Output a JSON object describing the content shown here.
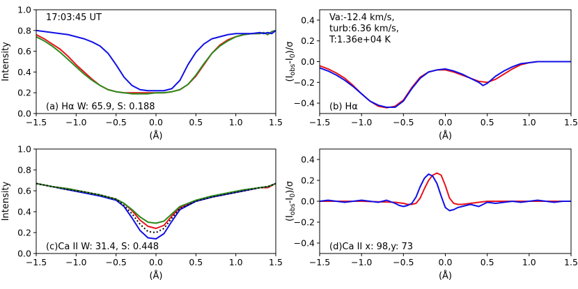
{
  "figure": {
    "colors": {
      "red": "#e8111a",
      "blue": "#0f0fe6",
      "green": "#2c8a1c",
      "black": "#000000"
    }
  },
  "chart_data": [
    {
      "id": "a",
      "type": "line",
      "title": "",
      "xlabel": "(Å)",
      "ylabel": "Intensity",
      "xlim": [
        -1.5,
        1.5
      ],
      "ylim": [
        0.0,
        1.0
      ],
      "xticks": [
        -1.5,
        -1.0,
        -0.5,
        0.0,
        0.5,
        1.0,
        1.5
      ],
      "xtick_labels": [
        "−1.5",
        "−1.0",
        "−0.5",
        "0.0",
        "0.5",
        "1.0",
        "1.5"
      ],
      "yticks": [
        0.0,
        0.2,
        0.4,
        0.6,
        0.8,
        1.0
      ],
      "ytick_labels": [
        "0.0",
        "0.2",
        "0.4",
        "0.6",
        "0.8",
        "1.0"
      ],
      "annotations": [
        {
          "text": "17:03:45 UT",
          "anchor": "top-left"
        },
        {
          "text": "(a) Hα W: 65.9, S: 0.188",
          "anchor": "bottom-left"
        }
      ],
      "series": [
        {
          "name": "red",
          "color": "#e8111a",
          "dash": "",
          "x": [
            -1.5,
            -1.4,
            -1.3,
            -1.2,
            -1.1,
            -1.0,
            -0.9,
            -0.8,
            -0.7,
            -0.6,
            -0.5,
            -0.4,
            -0.3,
            -0.2,
            -0.1,
            0.0,
            0.1,
            0.2,
            0.3,
            0.4,
            0.5,
            0.6,
            0.7,
            0.8,
            0.9,
            1.0,
            1.1,
            1.2,
            1.3,
            1.35,
            1.4,
            1.45,
            1.5
          ],
          "y": [
            0.76,
            0.72,
            0.67,
            0.62,
            0.55,
            0.47,
            0.4,
            0.33,
            0.27,
            0.23,
            0.21,
            0.2,
            0.2,
            0.2,
            0.2,
            0.2,
            0.2,
            0.21,
            0.23,
            0.28,
            0.36,
            0.47,
            0.58,
            0.66,
            0.71,
            0.74,
            0.76,
            0.77,
            0.77,
            0.78,
            0.76,
            0.79,
            0.8
          ]
        },
        {
          "name": "green",
          "color": "#2c8a1c",
          "dash": "",
          "x": [
            -1.5,
            -1.4,
            -1.3,
            -1.2,
            -1.1,
            -1.0,
            -0.9,
            -0.8,
            -0.7,
            -0.6,
            -0.5,
            -0.4,
            -0.3,
            -0.2,
            -0.1,
            0.0,
            0.1,
            0.2,
            0.3,
            0.4,
            0.5,
            0.6,
            0.7,
            0.8,
            0.9,
            1.0,
            1.1,
            1.2,
            1.3,
            1.35,
            1.4,
            1.45,
            1.5
          ],
          "y": [
            0.74,
            0.7,
            0.65,
            0.59,
            0.52,
            0.45,
            0.38,
            0.32,
            0.27,
            0.23,
            0.21,
            0.2,
            0.19,
            0.19,
            0.19,
            0.2,
            0.2,
            0.21,
            0.23,
            0.28,
            0.37,
            0.48,
            0.58,
            0.65,
            0.7,
            0.74,
            0.76,
            0.77,
            0.77,
            0.78,
            0.76,
            0.79,
            0.8
          ]
        },
        {
          "name": "blue",
          "color": "#0f0fe6",
          "dash": "",
          "x": [
            -1.5,
            -1.4,
            -1.3,
            -1.2,
            -1.1,
            -1.0,
            -0.9,
            -0.8,
            -0.7,
            -0.6,
            -0.5,
            -0.4,
            -0.3,
            -0.2,
            -0.1,
            0.0,
            0.1,
            0.2,
            0.3,
            0.4,
            0.5,
            0.6,
            0.7,
            0.8,
            0.9,
            1.0,
            1.1,
            1.2,
            1.3,
            1.35,
            1.4,
            1.45,
            1.5
          ],
          "y": [
            0.8,
            0.79,
            0.78,
            0.77,
            0.76,
            0.74,
            0.72,
            0.69,
            0.65,
            0.58,
            0.47,
            0.35,
            0.27,
            0.23,
            0.22,
            0.22,
            0.22,
            0.24,
            0.32,
            0.47,
            0.59,
            0.67,
            0.72,
            0.74,
            0.76,
            0.77,
            0.77,
            0.77,
            0.78,
            0.77,
            0.78,
            0.77,
            0.8
          ]
        }
      ]
    },
    {
      "id": "b",
      "type": "line",
      "title": "",
      "xlabel": "(Å)",
      "ylabel_main": "(I",
      "ylabel_sub1": "obs",
      "ylabel_mid": "-I",
      "ylabel_sub2": "0",
      "ylabel_end": ")/σ",
      "xlim": [
        -1.5,
        1.5
      ],
      "ylim": [
        -0.5,
        0.5
      ],
      "xticks": [
        -1.5,
        -1.0,
        -0.5,
        0.0,
        0.5,
        1.0,
        1.5
      ],
      "xtick_labels": [
        "−1.5",
        "−1.0",
        "−0.5",
        "0.0",
        "0.5",
        "1.0",
        "1.5"
      ],
      "yticks": [
        -0.4,
        -0.2,
        0.0,
        0.2,
        0.4
      ],
      "ytick_labels": [
        "−0.4",
        "−0.2",
        "0.0",
        "0.2",
        "0.4"
      ],
      "annotations": [
        {
          "text": "Va:-12.4 km/s,",
          "anchor": "top-left"
        },
        {
          "text": "turb:6.36 km/s,",
          "anchor": "top-left"
        },
        {
          "text": "T:1.36e+04 K",
          "anchor": "top-left"
        },
        {
          "text": "(b) Hα",
          "anchor": "bottom-left"
        }
      ],
      "series": [
        {
          "name": "red",
          "color": "#e8111a",
          "dash": "",
          "x": [
            -1.5,
            -1.4,
            -1.3,
            -1.2,
            -1.1,
            -1.0,
            -0.9,
            -0.8,
            -0.7,
            -0.6,
            -0.5,
            -0.4,
            -0.3,
            -0.2,
            -0.1,
            0.0,
            0.1,
            0.2,
            0.3,
            0.4,
            0.5,
            0.6,
            0.7,
            0.8,
            0.9,
            1.0,
            1.1,
            1.2,
            1.3,
            1.4,
            1.5
          ],
          "y": [
            -0.04,
            -0.07,
            -0.11,
            -0.16,
            -0.23,
            -0.31,
            -0.38,
            -0.43,
            -0.445,
            -0.43,
            -0.37,
            -0.25,
            -0.15,
            -0.1,
            -0.08,
            -0.08,
            -0.1,
            -0.13,
            -0.16,
            -0.19,
            -0.2,
            -0.17,
            -0.12,
            -0.07,
            -0.03,
            -0.01,
            0.0,
            0.0,
            0.0,
            0.0,
            0.0
          ]
        },
        {
          "name": "blue",
          "color": "#0f0fe6",
          "dash": "",
          "x": [
            -1.5,
            -1.4,
            -1.3,
            -1.2,
            -1.1,
            -1.0,
            -0.9,
            -0.8,
            -0.7,
            -0.6,
            -0.5,
            -0.4,
            -0.3,
            -0.2,
            -0.1,
            0.0,
            0.1,
            0.2,
            0.3,
            0.4,
            0.45,
            0.5,
            0.6,
            0.7,
            0.8,
            0.9,
            1.0,
            1.1,
            1.2,
            1.3,
            1.4,
            1.5
          ],
          "y": [
            -0.06,
            -0.09,
            -0.13,
            -0.18,
            -0.24,
            -0.31,
            -0.38,
            -0.42,
            -0.44,
            -0.44,
            -0.38,
            -0.26,
            -0.16,
            -0.1,
            -0.08,
            -0.07,
            -0.09,
            -0.12,
            -0.16,
            -0.2,
            -0.23,
            -0.21,
            -0.14,
            -0.09,
            -0.05,
            -0.02,
            -0.01,
            0.0,
            0.0,
            0.0,
            0.0,
            0.0
          ]
        }
      ]
    },
    {
      "id": "c",
      "type": "line",
      "title": "",
      "xlabel": "(Å)",
      "ylabel": "Intensity",
      "xlim": [
        -1.5,
        1.5
      ],
      "ylim": [
        0.0,
        1.0
      ],
      "xticks": [
        -1.5,
        -1.0,
        -0.5,
        0.0,
        0.5,
        1.0,
        1.5
      ],
      "xtick_labels": [
        "−1.5",
        "−1.0",
        "−0.5",
        "0.0",
        "0.5",
        "1.0",
        "1.5"
      ],
      "yticks": [
        0.0,
        0.2,
        0.4,
        0.6,
        0.8,
        1.0
      ],
      "ytick_labels": [
        "0.0",
        "0.2",
        "0.4",
        "0.6",
        "0.8",
        "1.0"
      ],
      "annotations": [
        {
          "text": "(c)Ca II W: 31.4, S: 0.448",
          "anchor": "bottom-left"
        }
      ],
      "series": [
        {
          "name": "red",
          "color": "#e8111a",
          "dash": "",
          "x": [
            -1.5,
            -1.3,
            -1.1,
            -0.9,
            -0.7,
            -0.5,
            -0.4,
            -0.3,
            -0.2,
            -0.1,
            0.0,
            0.1,
            0.2,
            0.3,
            0.5,
            0.7,
            0.9,
            1.1,
            1.3,
            1.4,
            1.5
          ],
          "y": [
            0.67,
            0.64,
            0.62,
            0.59,
            0.56,
            0.52,
            0.48,
            0.41,
            0.32,
            0.26,
            0.24,
            0.27,
            0.36,
            0.44,
            0.5,
            0.54,
            0.57,
            0.6,
            0.63,
            0.63,
            0.67
          ]
        },
        {
          "name": "blue",
          "color": "#0f0fe6",
          "dash": "",
          "x": [
            -1.5,
            -1.3,
            -1.1,
            -0.9,
            -0.7,
            -0.5,
            -0.4,
            -0.3,
            -0.2,
            -0.1,
            0.0,
            0.1,
            0.2,
            0.3,
            0.5,
            0.7,
            0.9,
            1.1,
            1.3,
            1.4,
            1.5
          ],
          "y": [
            0.67,
            0.64,
            0.61,
            0.58,
            0.55,
            0.51,
            0.45,
            0.34,
            0.22,
            0.15,
            0.14,
            0.19,
            0.31,
            0.42,
            0.5,
            0.54,
            0.57,
            0.6,
            0.63,
            0.64,
            0.67
          ]
        },
        {
          "name": "green",
          "color": "#2c8a1c",
          "dash": "",
          "x": [
            -1.5,
            -1.3,
            -1.1,
            -0.9,
            -0.7,
            -0.5,
            -0.4,
            -0.3,
            -0.2,
            -0.1,
            0.0,
            0.1,
            0.2,
            0.3,
            0.5,
            0.7,
            0.9,
            1.1,
            1.3,
            1.4,
            1.5
          ],
          "y": [
            0.67,
            0.64,
            0.62,
            0.59,
            0.56,
            0.52,
            0.48,
            0.42,
            0.35,
            0.3,
            0.29,
            0.31,
            0.38,
            0.45,
            0.51,
            0.55,
            0.58,
            0.61,
            0.63,
            0.64,
            0.67
          ]
        },
        {
          "name": "black-dotted",
          "color": "#000000",
          "dash": "2 3",
          "x": [
            -1.5,
            -1.3,
            -1.1,
            -0.9,
            -0.7,
            -0.5,
            -0.4,
            -0.3,
            -0.2,
            -0.1,
            0.0,
            0.1,
            0.2,
            0.3,
            0.5,
            0.7,
            0.9,
            1.1,
            1.3,
            1.4,
            1.5
          ],
          "y": [
            0.67,
            0.64,
            0.61,
            0.59,
            0.56,
            0.52,
            0.46,
            0.38,
            0.28,
            0.21,
            0.2,
            0.24,
            0.34,
            0.43,
            0.5,
            0.54,
            0.57,
            0.6,
            0.63,
            0.64,
            0.67
          ]
        }
      ]
    },
    {
      "id": "d",
      "type": "line",
      "title": "",
      "xlabel": "(Å)",
      "ylabel_main": "(I",
      "ylabel_sub1": "obs",
      "ylabel_mid": "-I",
      "ylabel_sub2": "0",
      "ylabel_end": ")/σ",
      "xlim": [
        -1.5,
        1.5
      ],
      "ylim": [
        -0.5,
        0.5
      ],
      "xticks": [
        -1.5,
        -1.0,
        -0.5,
        0.0,
        0.5,
        1.0,
        1.5
      ],
      "xtick_labels": [
        "−1.5",
        "−1.0",
        "−0.5",
        "0.0",
        "0.5",
        "1.0",
        "1.5"
      ],
      "yticks": [
        -0.4,
        -0.2,
        0.0,
        0.2,
        0.4
      ],
      "ytick_labels": [
        "−0.4",
        "−0.2",
        "0.0",
        "0.2",
        "0.4"
      ],
      "annotations": [
        {
          "text": "(d)Ca II x: 98,y: 73",
          "anchor": "bottom-left"
        }
      ],
      "series": [
        {
          "name": "red",
          "color": "#e8111a",
          "dash": "",
          "x": [
            -1.5,
            -1.0,
            -0.6,
            -0.5,
            -0.45,
            -0.4,
            -0.35,
            -0.3,
            -0.25,
            -0.2,
            -0.15,
            -0.1,
            -0.05,
            0.0,
            0.05,
            0.1,
            0.15,
            0.2,
            0.3,
            0.4,
            0.5,
            0.6,
            1.0,
            1.5
          ],
          "y": [
            0.0,
            0.0,
            -0.01,
            -0.02,
            -0.03,
            -0.03,
            -0.02,
            0.03,
            0.12,
            0.2,
            0.25,
            0.27,
            0.25,
            0.15,
            0.03,
            -0.02,
            -0.03,
            -0.03,
            -0.02,
            -0.01,
            0.0,
            0.0,
            0.0,
            0.0
          ]
        },
        {
          "name": "blue",
          "color": "#0f0fe6",
          "dash": "",
          "x": [
            -1.5,
            -1.4,
            -1.3,
            -1.2,
            -1.1,
            -1.0,
            -0.9,
            -0.8,
            -0.7,
            -0.6,
            -0.55,
            -0.5,
            -0.45,
            -0.4,
            -0.35,
            -0.3,
            -0.25,
            -0.2,
            -0.15,
            -0.1,
            -0.05,
            0.0,
            0.05,
            0.1,
            0.15,
            0.2,
            0.3,
            0.4,
            0.45,
            0.5,
            0.6,
            0.7,
            0.8,
            0.9,
            1.0,
            1.1,
            1.2,
            1.3,
            1.4,
            1.5
          ],
          "y": [
            0.0,
            0.01,
            0.0,
            -0.01,
            0.0,
            0.01,
            0.0,
            -0.01,
            0.01,
            -0.02,
            -0.04,
            -0.05,
            -0.04,
            -0.02,
            0.04,
            0.14,
            0.22,
            0.26,
            0.24,
            0.17,
            0.05,
            -0.06,
            -0.09,
            -0.08,
            -0.06,
            -0.05,
            -0.03,
            -0.05,
            -0.03,
            -0.01,
            -0.02,
            -0.01,
            0.0,
            -0.01,
            0.0,
            0.01,
            0.0,
            -0.01,
            0.0,
            0.0
          ]
        }
      ]
    }
  ]
}
